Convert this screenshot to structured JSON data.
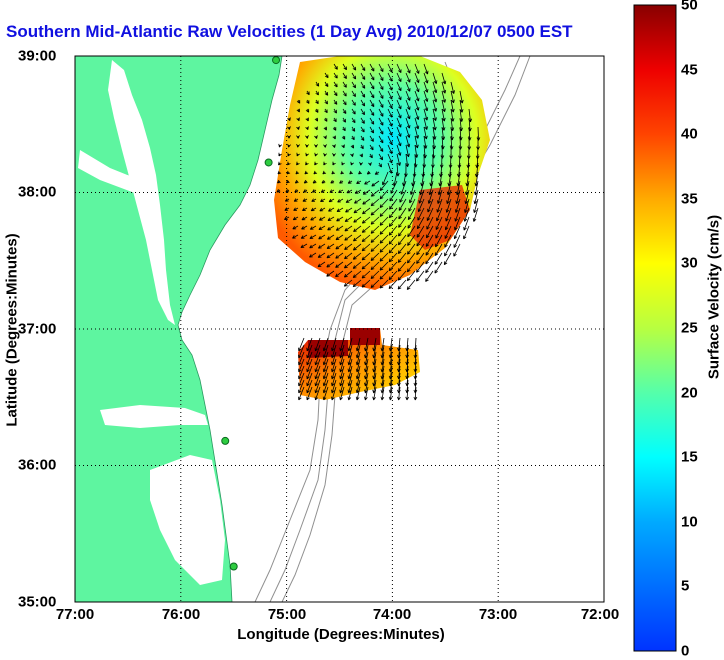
{
  "title": "Southern Mid-Atlantic Raw Velocities (1 Day Avg) 2010/12/07 0500 EST",
  "axes": {
    "xlabel": "Longitude (Degrees:Minutes)",
    "ylabel": "Latitude (Degrees:Minutes)",
    "x_ticks": [
      "77:00",
      "76:00",
      "75:00",
      "74:00",
      "73:00",
      "72:00"
    ],
    "y_ticks": [
      "39:00",
      "38:00",
      "37:00",
      "36:00",
      "35:00"
    ],
    "xlim": [
      -77,
      -72
    ],
    "ylim": [
      35,
      39
    ]
  },
  "colorbar": {
    "label": "Surface Velocity (cm/s)",
    "ticks": [
      "0",
      "5",
      "10",
      "15",
      "20",
      "25",
      "30",
      "35",
      "40",
      "45",
      "50"
    ],
    "range": [
      0,
      50
    ],
    "colormap": "jet"
  },
  "colors": {
    "land": "#5ef5a0",
    "title": "#1010e0",
    "grid": "#000000",
    "bathymetry": "#909090",
    "station": "#2ecc40"
  },
  "stations": [
    {
      "lon": -75.1,
      "lat": 38.97
    },
    {
      "lon": -75.17,
      "lat": 38.22
    },
    {
      "lon": -75.58,
      "lat": 36.18
    },
    {
      "lon": -75.5,
      "lat": 35.26
    }
  ]
}
